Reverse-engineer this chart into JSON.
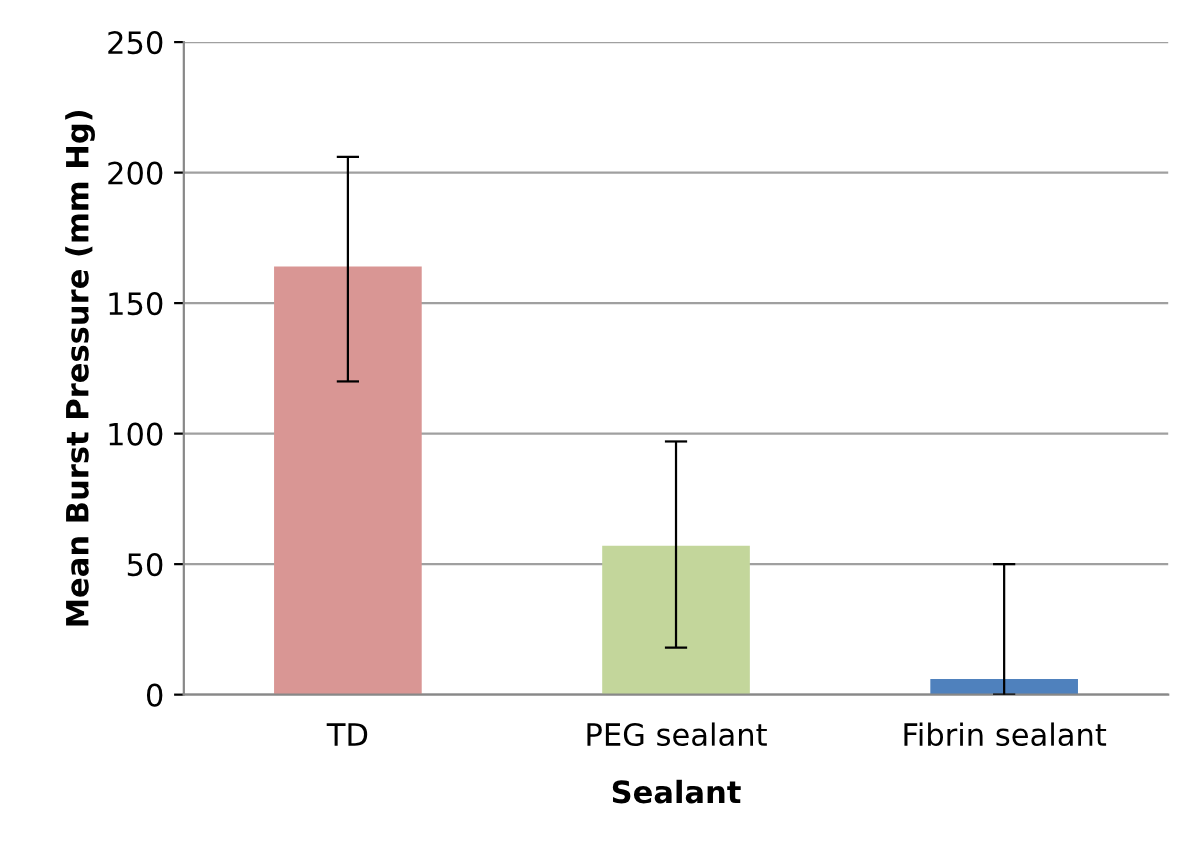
{
  "chart_data": {
    "type": "bar",
    "xlabel": "Sealant",
    "ylabel": "Mean Burst Pressure (mm Hg)",
    "categories": [
      "TD",
      "PEG sealant",
      "Fibrin sealant"
    ],
    "values": [
      164,
      57,
      6
    ],
    "colors": [
      "#d99694",
      "#c3d69b",
      "#4f81bd"
    ],
    "errors": [
      [
        120,
        206
      ],
      [
        18,
        97
      ],
      [
        0,
        50
      ]
    ],
    "ylim": [
      0,
      250
    ],
    "yticks": [
      0,
      50,
      100,
      150,
      200,
      250
    ],
    "grid": "y",
    "legend": false
  }
}
